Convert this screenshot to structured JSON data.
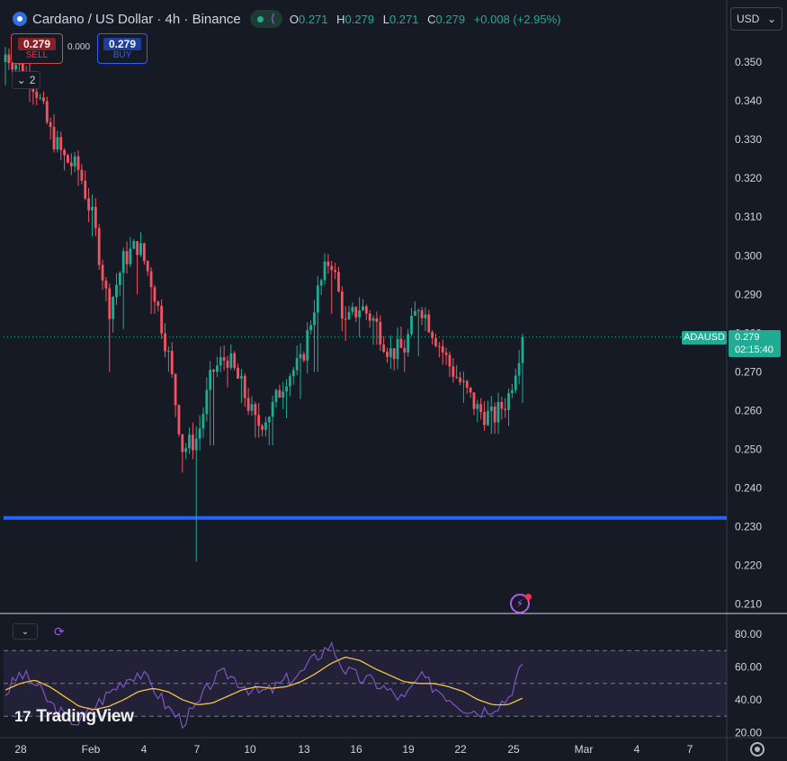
{
  "header": {
    "symbol_title": "Cardano / US Dollar · 4h · Binance",
    "ohlc": {
      "open_label": "O",
      "open": "0.271",
      "high_label": "H",
      "high": "0.279",
      "low_label": "L",
      "low": "0.271",
      "close_label": "C",
      "close": "0.279",
      "change": "+0.008 (+2.95%)"
    }
  },
  "trading": {
    "sell_price": "0.279",
    "sell_label": "SELL",
    "spread": "0.000",
    "buy_price": "0.279",
    "buy_label": "BUY"
  },
  "indicators_collapse": {
    "count": "2"
  },
  "currency_selector": {
    "value": "USD"
  },
  "price_axis": [
    "0.350",
    "0.340",
    "0.330",
    "0.320",
    "0.310",
    "0.300",
    "0.290",
    "0.280",
    "0.270",
    "0.260",
    "0.250",
    "0.240",
    "0.230",
    "0.220",
    "0.210"
  ],
  "last_price": {
    "symbol": "ADAUSD",
    "price": "0.279",
    "countdown": "02:15:40"
  },
  "horizontal_line_level": 0.2323,
  "time_axis": [
    "28",
    "Feb",
    "4",
    "7",
    "10",
    "13",
    "16",
    "19",
    "22",
    "25",
    "Mar",
    "4",
    "7"
  ],
  "rsi_axis": [
    "80.00",
    "60.00",
    "40.00",
    "20.00"
  ],
  "rsi_bands": {
    "upper": 70,
    "middle": 50,
    "lower": 30
  },
  "brand": {
    "logo_text": "TradingView"
  },
  "colors": {
    "background": "#161a25",
    "up": "#22ab94",
    "down": "#f7525f",
    "hline": "#2962ff",
    "rsi": "#7e57c2",
    "rsi_ma": "#f5c342"
  },
  "chart_data": {
    "type": "candlestick",
    "symbol": "ADAUSD",
    "interval": "4h",
    "exchange": "Binance",
    "ylim": [
      0.205,
      0.355
    ],
    "ohlc_anchors": [
      [
        0.35,
        0.36,
        0.344,
        0.352
      ],
      [
        0.352,
        0.354,
        0.345,
        0.349
      ],
      [
        0.349,
        0.352,
        0.34,
        0.344
      ],
      [
        0.344,
        0.346,
        0.33,
        0.332
      ],
      [
        0.332,
        0.334,
        0.322,
        0.325
      ],
      [
        0.325,
        0.328,
        0.318,
        0.322
      ],
      [
        0.322,
        0.324,
        0.305,
        0.308
      ],
      [
        0.308,
        0.31,
        0.27,
        0.286
      ],
      [
        0.286,
        0.302,
        0.281,
        0.299
      ],
      [
        0.299,
        0.305,
        0.29,
        0.303
      ],
      [
        0.303,
        0.304,
        0.285,
        0.292
      ],
      [
        0.292,
        0.296,
        0.27,
        0.275
      ],
      [
        0.275,
        0.278,
        0.244,
        0.25
      ],
      [
        0.25,
        0.256,
        0.221,
        0.253
      ],
      [
        0.253,
        0.272,
        0.251,
        0.27
      ],
      [
        0.27,
        0.277,
        0.266,
        0.274
      ],
      [
        0.274,
        0.276,
        0.262,
        0.266
      ],
      [
        0.266,
        0.27,
        0.253,
        0.256
      ],
      [
        0.256,
        0.263,
        0.251,
        0.26
      ],
      [
        0.26,
        0.272,
        0.258,
        0.269
      ],
      [
        0.269,
        0.276,
        0.263,
        0.272
      ],
      [
        0.272,
        0.292,
        0.27,
        0.289
      ],
      [
        0.289,
        0.302,
        0.285,
        0.3
      ],
      [
        0.3,
        0.301,
        0.278,
        0.282
      ],
      [
        0.282,
        0.29,
        0.279,
        0.287
      ],
      [
        0.287,
        0.289,
        0.277,
        0.283
      ],
      [
        0.283,
        0.285,
        0.272,
        0.275
      ],
      [
        0.275,
        0.28,
        0.27,
        0.276
      ],
      [
        0.276,
        0.293,
        0.274,
        0.288
      ],
      [
        0.288,
        0.289,
        0.277,
        0.28
      ],
      [
        0.28,
        0.282,
        0.27,
        0.272
      ],
      [
        0.272,
        0.277,
        0.262,
        0.266
      ],
      [
        0.266,
        0.271,
        0.257,
        0.26
      ],
      [
        0.26,
        0.264,
        0.254,
        0.258
      ],
      [
        0.258,
        0.266,
        0.256,
        0.263
      ],
      [
        0.263,
        0.279,
        0.262,
        0.279
      ]
    ],
    "last": 0.279,
    "horizontal_line": 0.2323,
    "rsi": {
      "ylim": [
        15,
        85
      ],
      "levels": [
        30,
        50,
        70
      ],
      "values": [
        44,
        56,
        50,
        38,
        30,
        26,
        36,
        44,
        52,
        57,
        48,
        35,
        27,
        36,
        52,
        56,
        50,
        44,
        46,
        52,
        56,
        66,
        74,
        58,
        53,
        51,
        45,
        40,
        54,
        48,
        42,
        36,
        33,
        36,
        41,
        62
      ],
      "ma": [
        46,
        50,
        52,
        48,
        42,
        36,
        34,
        36,
        40,
        45,
        47,
        45,
        40,
        37,
        38,
        42,
        46,
        48,
        47,
        48,
        51,
        56,
        62,
        66,
        64,
        59,
        55,
        51,
        50,
        50,
        48,
        45,
        40,
        37,
        37,
        41
      ]
    }
  }
}
